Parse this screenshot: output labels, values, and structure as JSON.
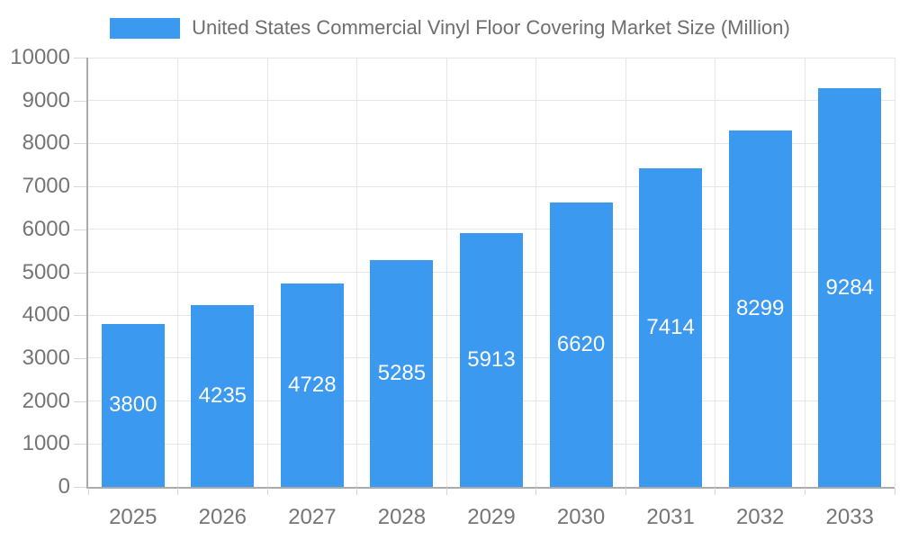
{
  "chart_data": {
    "type": "bar",
    "title": "United States Commercial Vinyl Floor Covering Market Size (Million)",
    "categories": [
      "2025",
      "2026",
      "2027",
      "2028",
      "2029",
      "2030",
      "2031",
      "2032",
      "2033"
    ],
    "values": [
      3800,
      4235,
      4728,
      5285,
      5913,
      6620,
      7414,
      8299,
      9284
    ],
    "series": [
      {
        "name": "United States Commercial Vinyl Floor Covering Market Size (Million)",
        "values": [
          3800,
          4235,
          4728,
          5285,
          5913,
          6620,
          7414,
          8299,
          9284
        ]
      }
    ],
    "xlabel": "",
    "ylabel": "",
    "ylim": [
      0,
      10000
    ],
    "y_ticks": [
      0,
      1000,
      2000,
      3000,
      4000,
      5000,
      6000,
      7000,
      8000,
      9000,
      10000
    ],
    "grid": true,
    "legend_position": "top",
    "data_labels": "inside-center-white",
    "colors": {
      "bar": "#3B99F0",
      "bar_label": "#FFFFFF",
      "axis_line": "#ABABAB",
      "gridline": "#E6E6E6",
      "tick_mark": "#D6D6D6",
      "tick_label": "#757575",
      "title_text": "#6E6E6E",
      "background": "#FFFFFF"
    }
  }
}
